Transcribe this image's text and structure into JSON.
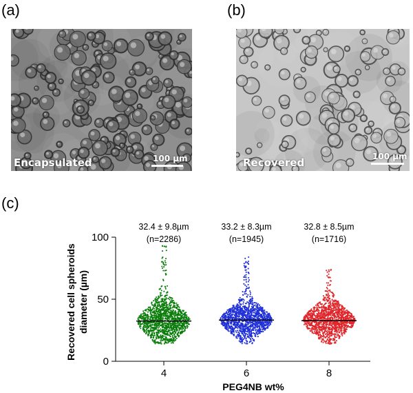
{
  "panels": {
    "a": {
      "letter": "(a)",
      "label": "Encapsulated",
      "scale": "100 µm"
    },
    "b": {
      "letter": "(b)",
      "label": "Recovered",
      "scale": "100 µm"
    },
    "c": {
      "letter": "(c)"
    }
  },
  "colors": {
    "green": "#0a7d0a",
    "blue": "#1f2fd8",
    "red": "#e0262b",
    "median": "#000000"
  },
  "chart_data": {
    "type": "scatter",
    "xlabel": "PEG4NB wt%",
    "ylabel_lines": [
      "Recovered cell spheroids",
      "diameter (µm)"
    ],
    "ylim": [
      0,
      100
    ],
    "yticks": [
      0,
      50,
      100
    ],
    "categories": [
      "4",
      "6",
      "8"
    ],
    "series": [
      {
        "category": "4",
        "color": "#0a7d0a",
        "mean": 32.4,
        "sd": 9.8,
        "n": 2286,
        "max": 93,
        "stat_label": "32.4 ± 9.8µm",
        "n_label": "(n=2286)"
      },
      {
        "category": "6",
        "color": "#1f2fd8",
        "mean": 33.2,
        "sd": 8.3,
        "n": 1945,
        "max": 84,
        "stat_label": "33.2 ± 8.3µm",
        "n_label": "(n=1945)"
      },
      {
        "category": "8",
        "color": "#e0262b",
        "mean": 32.8,
        "sd": 8.5,
        "n": 1716,
        "max": 75,
        "stat_label": "32.8 ± 8.5µm",
        "n_label": "(n=1716)"
      }
    ]
  }
}
